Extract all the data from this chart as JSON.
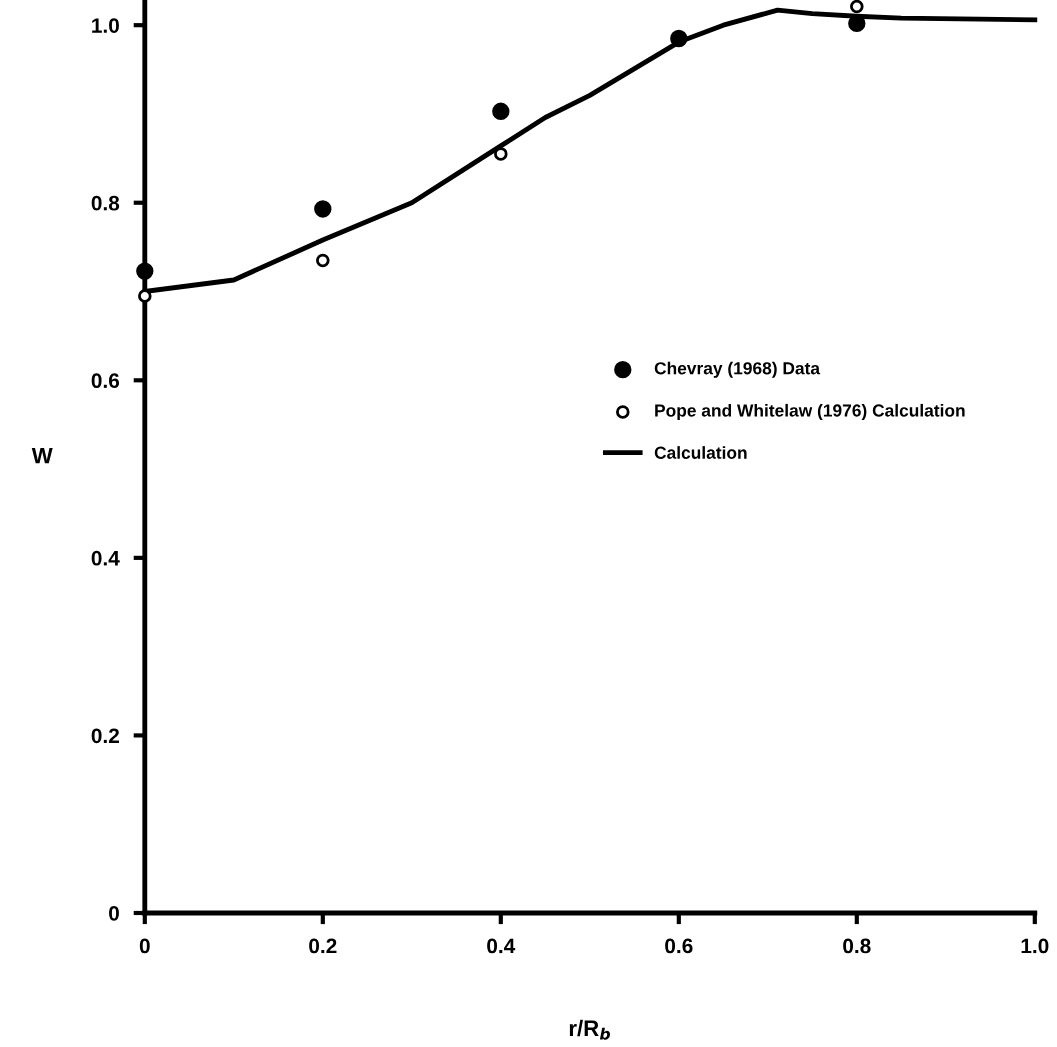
{
  "chart_data": {
    "type": "scatter",
    "xlabel": "r/R$_{b}$",
    "ylabel": "W",
    "xlim": [
      0,
      1.0
    ],
    "ylim": [
      0,
      1.026
    ],
    "xticks": [
      0,
      0.2,
      0.4,
      0.6,
      0.8,
      {
        "value": 1,
        "label": "1.0"
      }
    ],
    "yticks": [
      0,
      0.2,
      0.4,
      0.6,
      0.8,
      {
        "value": 1,
        "label": "1.0"
      }
    ],
    "grid": false,
    "legend": "right",
    "series": [
      {
        "name": "Chevray (1968) Data",
        "color": "#000000",
        "marker": "circle",
        "x": [
          0,
          0.2,
          0.4,
          0.6,
          0.8
        ],
        "values": [
          0.723,
          0.793,
          0.903,
          0.985,
          1.002
        ]
      },
      {
        "name": "Pope and Whitelaw (1976) Calculation",
        "color": "#000000",
        "marker": "circle",
        "x": [
          0,
          0.2,
          0.4,
          0.8
        ],
        "values": [
          0.695,
          0.735,
          0.855,
          1.021
        ]
      },
      {
        "name": "Calculation",
        "color": "#000000",
        "type": "line",
        "marker": "none",
        "line_style": "solid",
        "x": [
          0,
          0.1,
          0.2,
          0.3,
          0.4,
          0.45,
          0.5,
          0.6,
          0.65,
          0.711,
          0.75,
          0.8,
          0.85,
          1.0
        ],
        "values": [
          0.7,
          0.713,
          0.758,
          0.8,
          0.864,
          0.896,
          0.921,
          0.981,
          1.0,
          1.017,
          1.013,
          1.01,
          1.008,
          1.006
        ]
      }
    ]
  }
}
